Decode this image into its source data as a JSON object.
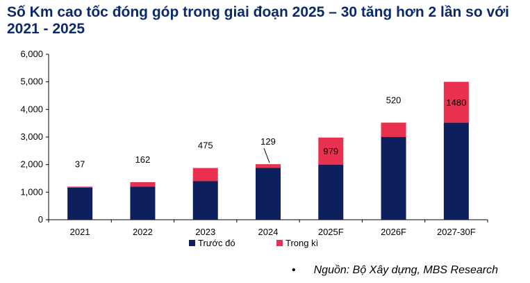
{
  "title": "Số Km cao tốc đóng góp trong giai đoạn 2025 – 30 tăng hơn 2 lần so với 2021 - 2025",
  "source": "Nguồn: Bộ Xây dựng, MBS Research",
  "source_bullet": "•",
  "colors": {
    "before": "#0d1f5c",
    "during": "#e8304f"
  },
  "chart_data": {
    "type": "bar",
    "stacked": true,
    "categories": [
      "2021",
      "2022",
      "2023",
      "2024",
      "2025F",
      "2026F",
      "2027-30F"
    ],
    "series": [
      {
        "name": "Trước đó",
        "values": [
          1163,
          1200,
          1400,
          1885,
          2000,
          3000,
          3520
        ]
      },
      {
        "name": "Trong kì",
        "values": [
          37,
          162,
          475,
          129,
          979,
          520,
          1480
        ]
      }
    ],
    "data_labels": [
      "37",
      "162",
      "475",
      "129",
      "979",
      "520",
      "1480"
    ],
    "ylim": [
      0,
      6000
    ],
    "yticks": [
      0,
      1000,
      2000,
      3000,
      4000,
      5000,
      6000
    ],
    "ytick_labels": [
      "0",
      "1,000",
      "2,000",
      "3,000",
      "4,000",
      "5,000",
      "6,000"
    ],
    "grid": false,
    "legend": "bottom"
  }
}
